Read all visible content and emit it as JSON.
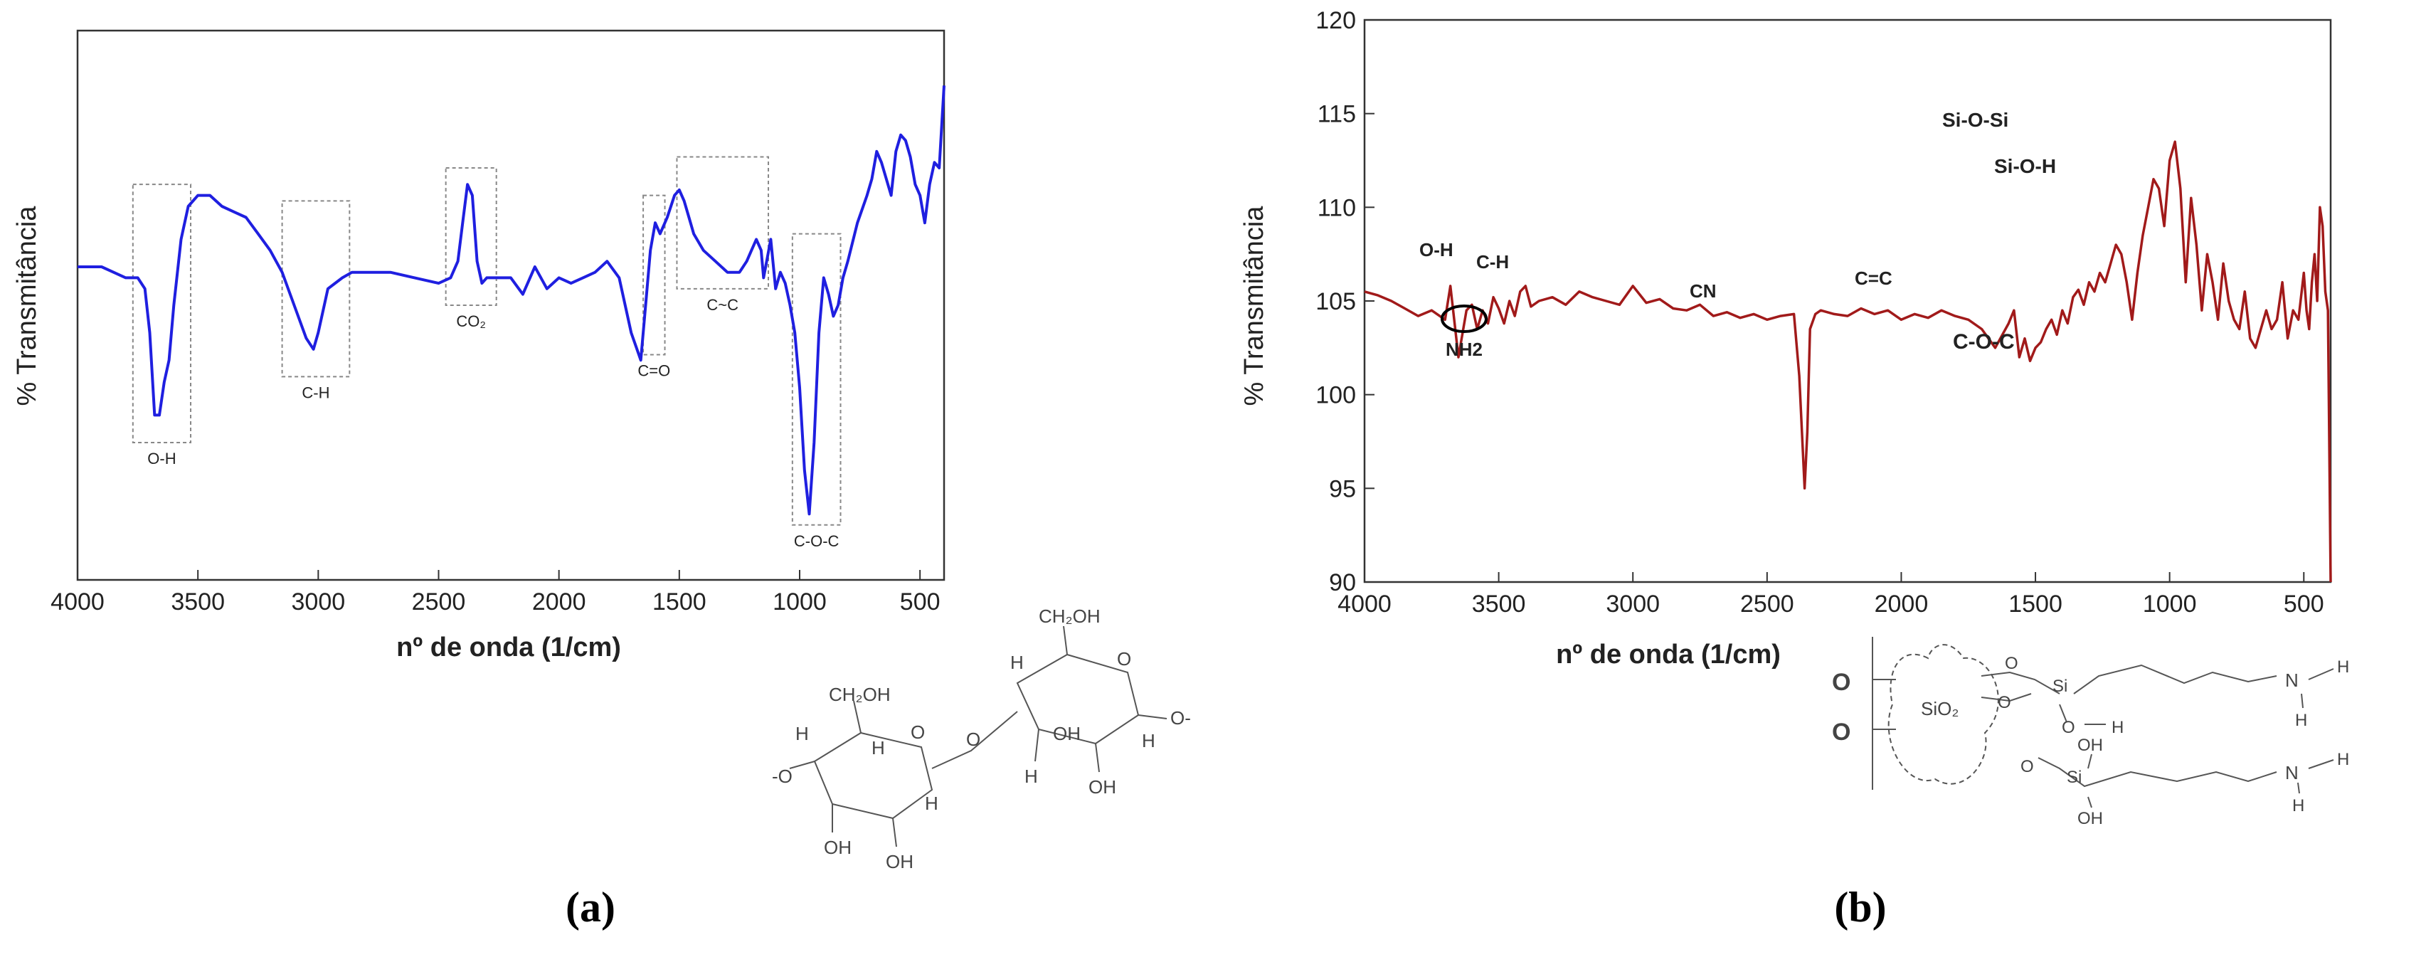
{
  "chart_data": [
    {
      "type": "line",
      "panel_label": "(a)",
      "xlabel": "nº de onda (1/cm)",
      "ylabel": "% Transmitância",
      "xlim": [
        4000,
        400
      ],
      "ylim": [
        0,
        100
      ],
      "x_reversed": true,
      "y_ticks_shown": false,
      "x_ticks": [
        4000,
        3500,
        3000,
        2500,
        2000,
        1500,
        1000,
        500
      ],
      "line_color": "#1f1fe0",
      "grid": false,
      "series": [
        {
          "x": [
            4000,
            3900,
            3800,
            3750,
            3720,
            3700,
            3680,
            3660,
            3640,
            3620,
            3600,
            3570,
            3540,
            3500,
            3450,
            3400,
            3350,
            3300,
            3250,
            3200,
            3150,
            3100,
            3050,
            3020,
            3000,
            2960,
            2930,
            2900,
            2860,
            2800,
            2700,
            2600,
            2500,
            2450,
            2420,
            2400,
            2380,
            2360,
            2340,
            2320,
            2300,
            2280,
            2250,
            2200,
            2150,
            2100,
            2050,
            2000,
            1950,
            1900,
            1850,
            1800,
            1750,
            1700,
            1660,
            1640,
            1620,
            1600,
            1580,
            1550,
            1520,
            1500,
            1480,
            1460,
            1440,
            1400,
            1350,
            1300,
            1250,
            1220,
            1200,
            1180,
            1160,
            1150,
            1120,
            1100,
            1080,
            1060,
            1040,
            1020,
            1000,
            980,
            960,
            940,
            920,
            900,
            880,
            860,
            840,
            820,
            800,
            760,
            720,
            700,
            680,
            660,
            640,
            620,
            600,
            580,
            560,
            540,
            520,
            500,
            480,
            460,
            440,
            420,
            400
          ],
          "y": [
            57,
            57,
            55,
            55,
            53,
            45,
            30,
            30,
            36,
            40,
            50,
            62,
            68,
            70,
            70,
            68,
            67,
            66,
            63,
            60,
            56,
            50,
            44,
            42,
            45,
            53,
            54,
            55,
            56,
            56,
            56,
            55,
            54,
            55,
            58,
            65,
            72,
            70,
            58,
            54,
            55,
            55,
            55,
            55,
            52,
            57,
            53,
            55,
            54,
            55,
            56,
            58,
            55,
            45,
            40,
            50,
            60,
            65,
            63,
            66,
            70,
            71,
            69,
            66,
            63,
            60,
            58,
            56,
            56,
            58,
            60,
            62,
            60,
            55,
            62,
            53,
            56,
            54,
            50,
            45,
            35,
            20,
            12,
            25,
            45,
            55,
            52,
            48,
            50,
            55,
            58,
            65,
            70,
            73,
            78,
            76,
            73,
            70,
            78,
            81,
            80,
            77,
            72,
            70,
            65,
            72,
            76,
            75,
            90
          ]
        }
      ],
      "bands": [
        {
          "label": "O-H",
          "x_range": [
            3770,
            3530
          ],
          "y_range": [
            25,
            72
          ]
        },
        {
          "label": "C-H",
          "x_range": [
            3150,
            2870
          ],
          "y_range": [
            37,
            69
          ]
        },
        {
          "label": "CO₂",
          "x_range": [
            2470,
            2260
          ],
          "y_range": [
            50,
            75
          ]
        },
        {
          "label": "C=O",
          "x_range": [
            1650,
            1560
          ],
          "y_range": [
            41,
            70
          ]
        },
        {
          "label": "C~C",
          "x_range": [
            1510,
            1130
          ],
          "y_range": [
            53,
            77
          ]
        },
        {
          "label": "C-O-C",
          "x_range": [
            1030,
            830
          ],
          "y_range": [
            10,
            63
          ]
        }
      ],
      "structure_labels": {
        "ch2oh_1": "CH₂OH",
        "ch2oh_2": "CH₂OH",
        "h": "H",
        "oh": "OH",
        "o": "O",
        "o_left": "-O",
        "o_right": "O-"
      }
    },
    {
      "type": "line",
      "panel_label": "(b)",
      "xlabel": "nº de onda (1/cm)",
      "ylabel": "% Transmitância",
      "xlim": [
        4000,
        400
      ],
      "ylim": [
        90,
        120
      ],
      "x_reversed": true,
      "x_ticks": [
        4000,
        3500,
        3000,
        2500,
        2000,
        1500,
        1000,
        500
      ],
      "y_ticks": [
        90,
        95,
        100,
        105,
        110,
        115,
        120
      ],
      "line_color": "#a11a1a",
      "grid": false,
      "series": [
        {
          "x": [
            4000,
            3950,
            3900,
            3850,
            3800,
            3750,
            3700,
            3680,
            3650,
            3620,
            3600,
            3580,
            3560,
            3540,
            3520,
            3500,
            3480,
            3460,
            3440,
            3420,
            3400,
            3380,
            3350,
            3300,
            3250,
            3200,
            3150,
            3100,
            3050,
            3000,
            2950,
            2900,
            2850,
            2800,
            2750,
            2700,
            2650,
            2600,
            2550,
            2500,
            2450,
            2400,
            2380,
            2360,
            2350,
            2340,
            2320,
            2300,
            2250,
            2200,
            2150,
            2100,
            2050,
            2000,
            1950,
            1900,
            1850,
            1800,
            1750,
            1700,
            1650,
            1600,
            1580,
            1560,
            1540,
            1520,
            1500,
            1480,
            1460,
            1440,
            1420,
            1400,
            1380,
            1360,
            1340,
            1320,
            1300,
            1280,
            1260,
            1240,
            1220,
            1200,
            1180,
            1160,
            1140,
            1120,
            1100,
            1080,
            1060,
            1040,
            1020,
            1000,
            980,
            960,
            940,
            920,
            900,
            880,
            860,
            840,
            820,
            800,
            780,
            760,
            740,
            720,
            700,
            680,
            660,
            640,
            620,
            600,
            580,
            560,
            540,
            520,
            500,
            490,
            480,
            470,
            460,
            450,
            440,
            430,
            420,
            410,
            400
          ],
          "y": [
            105.5,
            105.3,
            105.0,
            104.6,
            104.2,
            104.5,
            104.0,
            105.8,
            102.0,
            104.5,
            104.8,
            103.5,
            104.5,
            103.8,
            105.2,
            104.6,
            103.8,
            105.0,
            104.2,
            105.5,
            105.8,
            104.7,
            105.0,
            105.2,
            104.8,
            105.5,
            105.2,
            105.0,
            104.8,
            105.8,
            104.9,
            105.1,
            104.6,
            104.5,
            104.8,
            104.2,
            104.4,
            104.1,
            104.3,
            104.0,
            104.2,
            104.3,
            101.0,
            95.0,
            98.0,
            103.5,
            104.3,
            104.5,
            104.3,
            104.2,
            104.6,
            104.3,
            104.5,
            104.0,
            104.3,
            104.1,
            104.5,
            104.2,
            104.0,
            103.5,
            102.5,
            103.8,
            104.5,
            102.0,
            103.0,
            101.8,
            102.5,
            102.8,
            103.5,
            104.0,
            103.2,
            104.5,
            103.8,
            105.2,
            105.6,
            104.8,
            106.0,
            105.5,
            106.5,
            106.0,
            107.0,
            108.0,
            107.5,
            106.0,
            104.0,
            106.5,
            108.5,
            110.0,
            111.5,
            111.0,
            109.0,
            112.5,
            113.5,
            111.0,
            106.0,
            110.5,
            108.0,
            104.5,
            107.5,
            106.0,
            104.0,
            107.0,
            105.0,
            104.0,
            103.5,
            105.5,
            103.0,
            102.5,
            103.5,
            104.5,
            103.5,
            104.0,
            106.0,
            103.0,
            104.5,
            104.0,
            106.5,
            104.5,
            103.5,
            106.0,
            107.5,
            105.0,
            110.0,
            109.0,
            105.5,
            104.5,
            90.0
          ]
        }
      ],
      "annotations": [
        "O-H",
        "C-H",
        "NH2",
        "CN",
        "C=C",
        "Si-O-Si",
        "Si-O-H",
        "C-O-C"
      ],
      "structure_labels": {
        "sio2": "SiO₂",
        "o": "O",
        "si": "Si",
        "oh": "OH",
        "h": "H",
        "n": "N"
      }
    }
  ]
}
